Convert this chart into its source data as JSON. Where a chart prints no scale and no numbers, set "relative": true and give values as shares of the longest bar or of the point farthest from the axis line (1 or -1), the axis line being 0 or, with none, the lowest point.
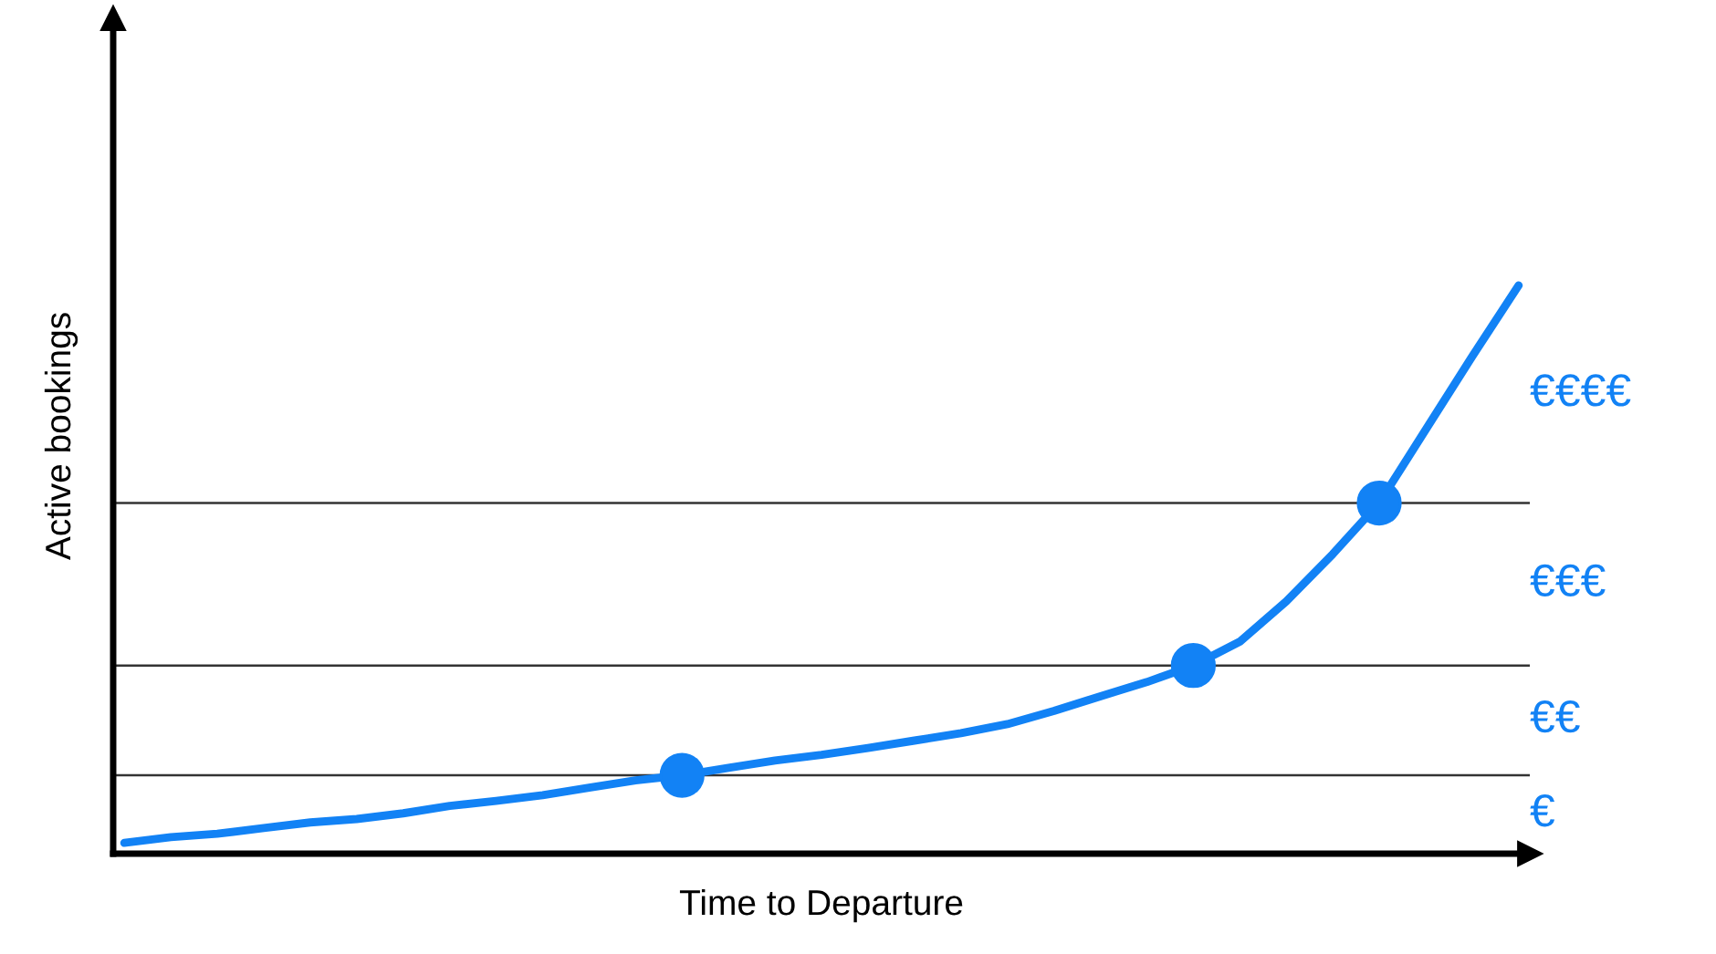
{
  "chart_data": {
    "type": "line",
    "relative": true,
    "xlabel": "Time to Departure",
    "ylabel": "Active bookings",
    "categories": [
      null,
      null,
      null,
      null,
      null,
      null,
      null,
      null,
      null,
      null,
      null,
      null,
      null,
      null,
      null,
      null,
      null,
      null,
      null,
      null,
      null,
      null,
      null,
      null,
      null,
      null,
      null,
      null,
      null,
      null,
      null
    ],
    "series": [
      {
        "color": "#1282f5",
        "values": [
          0.019,
          0.029,
          0.035,
          0.045,
          0.055,
          0.061,
          0.071,
          0.084,
          0.093,
          0.103,
          0.116,
          0.129,
          0.138,
          0.151,
          0.164,
          0.174,
          0.186,
          0.199,
          0.212,
          0.228,
          0.251,
          0.277,
          0.302,
          0.331,
          0.373,
          0.444,
          0.527,
          0.617,
          0.746,
          0.875,
          1
        ]
      }
    ],
    "ref_lines": [
      {
        "axis": "y",
        "value": 0.138,
        "color": "#333333"
      },
      {
        "axis": "y",
        "value": 0.331,
        "color": "#333333"
      },
      {
        "axis": "y",
        "value": 0.617,
        "color": "#333333"
      }
    ],
    "annotations": [
      "€",
      "€€",
      "€€€",
      "€€€€"
    ],
    "legend": false
  }
}
